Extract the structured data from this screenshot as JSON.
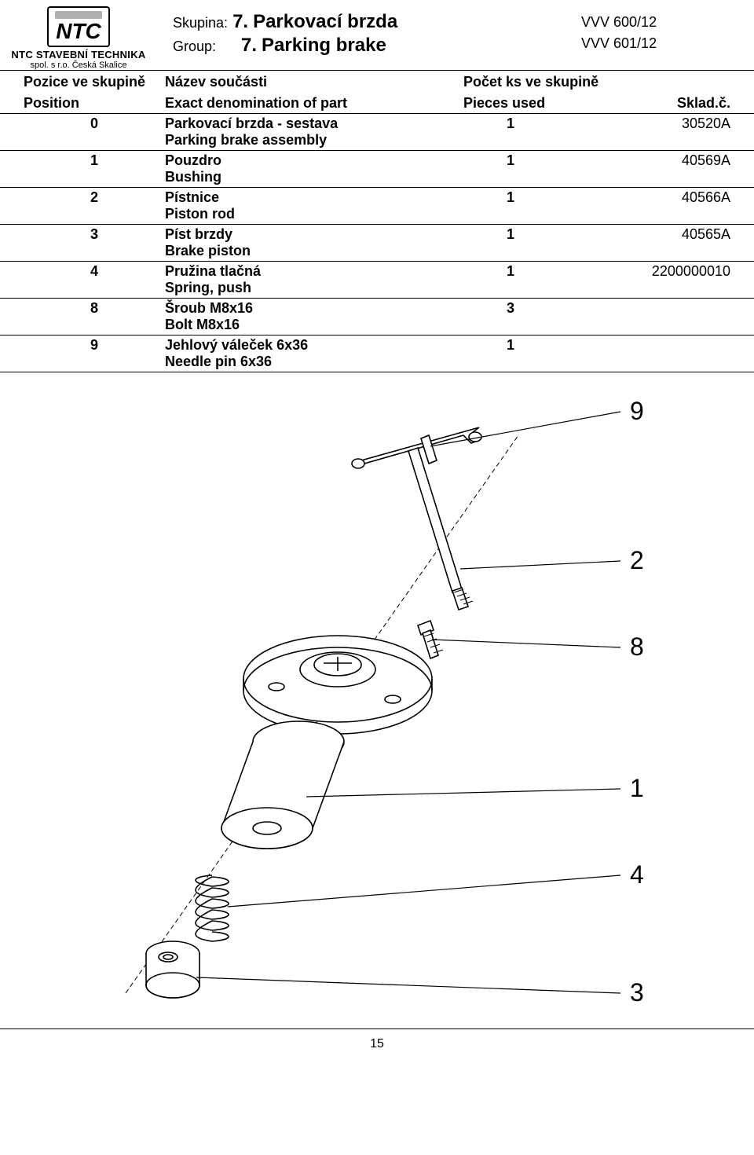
{
  "logo": {
    "brand": "NTC",
    "sub1": "NTC STAVEBNÍ TECHNIKA",
    "sub2": "spol. s r.o.  Česká Skalice"
  },
  "header": {
    "skupina_label": "Skupina:",
    "group_label": "Group:",
    "skupina_num": "7.",
    "group_num": "7.",
    "skupina_title": "Parkovací brzda",
    "group_title": "Parking brake",
    "code1": "VVV 600/12",
    "code2": "VVV 601/12"
  },
  "columns": {
    "cz": {
      "pos": "Pozice ve skupině",
      "name": "Název součásti",
      "qty": "Počet ks ve skupině",
      "sku": ""
    },
    "en": {
      "pos": "Position",
      "name": "Exact denomination of part",
      "qty": "Pieces used",
      "sku": "Sklad.č."
    }
  },
  "rows": [
    {
      "pos": "0",
      "name_cz": "Parkovací brzda - sestava",
      "name_en": "Parking brake assembly",
      "qty": "1",
      "sku": "30520A"
    },
    {
      "pos": "1",
      "name_cz": "Pouzdro",
      "name_en": "Bushing",
      "qty": "1",
      "sku": "40569A"
    },
    {
      "pos": "2",
      "name_cz": "Pístnice",
      "name_en": "Piston rod",
      "qty": "1",
      "sku": "40566A"
    },
    {
      "pos": "3",
      "name_cz": "Píst brzdy",
      "name_en": "Brake piston",
      "qty": "1",
      "sku": "40565A"
    },
    {
      "pos": "4",
      "name_cz": "Pružina tlačná",
      "name_en": "Spring, push",
      "qty": "1",
      "sku": "2200000010"
    },
    {
      "pos": "8",
      "name_cz": "Šroub M8x16",
      "name_en": "Bolt M8x16",
      "qty": "3",
      "sku": ""
    },
    {
      "pos": "9",
      "name_cz": "Jehlový váleček 6x36",
      "name_en": "Needle pin 6x36",
      "qty": "1",
      "sku": ""
    }
  ],
  "diagram": {
    "callouts": [
      "9",
      "2",
      "8",
      "1",
      "4",
      "3"
    ],
    "stroke": "#000000",
    "fill": "#ffffff",
    "font_size": 32,
    "line_width": 1.6
  },
  "page_number": "15"
}
